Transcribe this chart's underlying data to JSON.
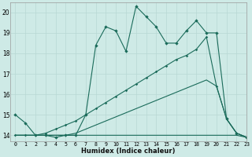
{
  "xlabel": "Humidex (Indice chaleur)",
  "xlim": [
    -0.5,
    23
  ],
  "ylim": [
    13.7,
    20.5
  ],
  "xticks": [
    0,
    1,
    2,
    3,
    4,
    5,
    6,
    7,
    8,
    9,
    10,
    11,
    12,
    13,
    14,
    15,
    16,
    17,
    18,
    19,
    20,
    21,
    22,
    23
  ],
  "yticks": [
    14,
    15,
    16,
    17,
    18,
    19,
    20
  ],
  "bg_color": "#ceeae6",
  "grid_color": "#b8d8d4",
  "line_color": "#1a6b5a",
  "line1_x": [
    0,
    1,
    2,
    3,
    4,
    5,
    6,
    7,
    8,
    9,
    10,
    11,
    12,
    13,
    14,
    15,
    16,
    17,
    18,
    19,
    20,
    21,
    22,
    23
  ],
  "line1_y": [
    15.0,
    14.6,
    14.0,
    14.0,
    13.9,
    14.0,
    14.0,
    15.0,
    18.4,
    19.3,
    19.1,
    18.1,
    20.3,
    19.8,
    19.3,
    18.5,
    18.5,
    19.1,
    19.6,
    19.0,
    19.0,
    14.8,
    14.1,
    13.9
  ],
  "line2_x": [
    0,
    1,
    2,
    3,
    4,
    5,
    6,
    7,
    8,
    9,
    10,
    11,
    12,
    13,
    14,
    15,
    16,
    17,
    18,
    19,
    20,
    21,
    22,
    23
  ],
  "line2_y": [
    14.0,
    14.0,
    14.0,
    14.0,
    14.0,
    14.0,
    14.0,
    14.0,
    14.0,
    14.0,
    14.0,
    14.0,
    14.0,
    14.0,
    14.0,
    14.0,
    14.0,
    14.0,
    14.0,
    14.0,
    14.0,
    14.0,
    14.0,
    13.9
  ],
  "line3_x": [
    0,
    1,
    2,
    3,
    4,
    5,
    6,
    7,
    8,
    9,
    10,
    11,
    12,
    13,
    14,
    15,
    16,
    17,
    18,
    19,
    20,
    21,
    22,
    23
  ],
  "line3_y": [
    14.0,
    14.0,
    14.0,
    14.1,
    14.3,
    14.5,
    14.7,
    15.0,
    15.3,
    15.6,
    15.9,
    16.2,
    16.5,
    16.8,
    17.1,
    17.4,
    17.7,
    17.9,
    18.2,
    18.8,
    16.4,
    14.8,
    14.1,
    13.9
  ],
  "line4_x": [
    0,
    1,
    2,
    3,
    4,
    5,
    6,
    7,
    8,
    9,
    10,
    11,
    12,
    13,
    14,
    15,
    16,
    17,
    18,
    19,
    20,
    21,
    22,
    23
  ],
  "line4_y": [
    14.0,
    14.0,
    14.0,
    14.0,
    14.0,
    14.0,
    14.1,
    14.3,
    14.5,
    14.7,
    14.9,
    15.1,
    15.3,
    15.5,
    15.7,
    15.9,
    16.1,
    16.3,
    16.5,
    16.7,
    16.4,
    14.8,
    14.1,
    13.9
  ]
}
